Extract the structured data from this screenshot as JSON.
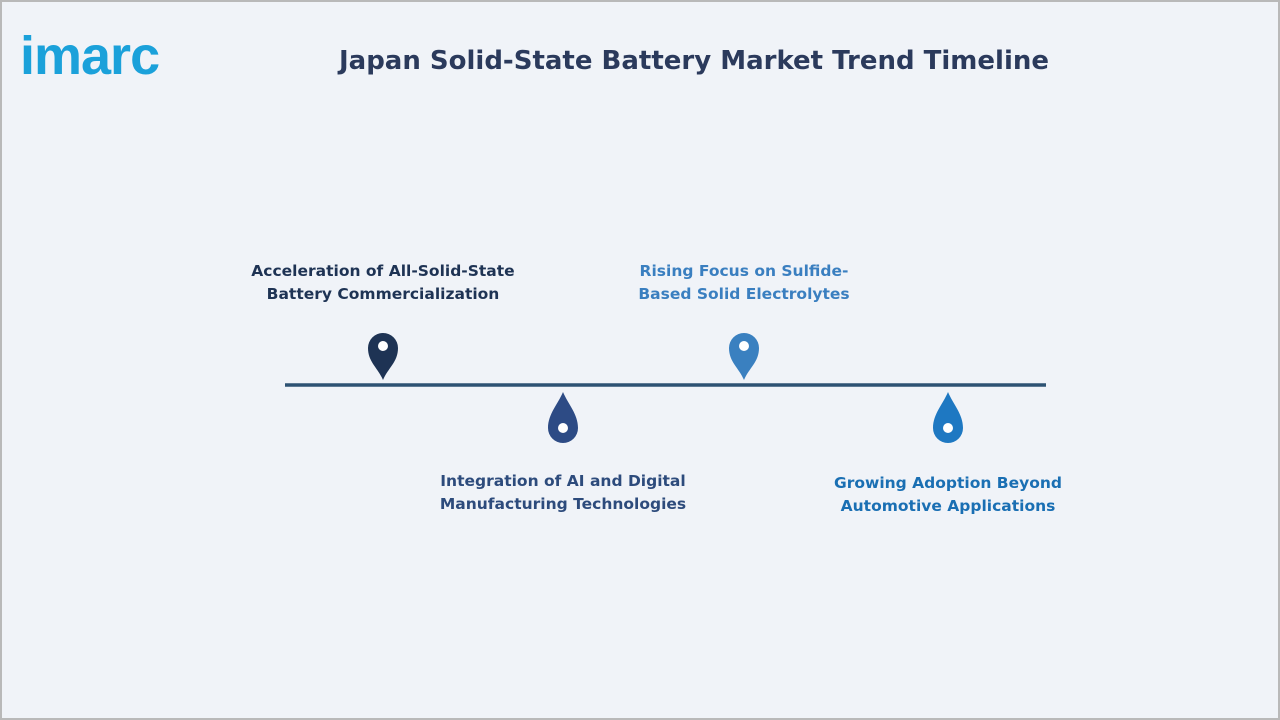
{
  "header": {
    "logo": "imarc",
    "title": "Japan Solid-State Battery Market Trend Timeline"
  },
  "timeline": {
    "items": [
      {
        "lines": [
          "Acceleration of All-Solid-State",
          "Battery Commercialization"
        ]
      },
      {
        "lines": [
          "Integration of AI and Digital",
          "Manufacturing Technologies"
        ]
      },
      {
        "lines": [
          "Rising Focus on Sulfide-",
          "Based Solid Electrolytes"
        ]
      },
      {
        "lines": [
          "Growing Adoption Beyond",
          "Automotive Applications"
        ]
      }
    ]
  }
}
